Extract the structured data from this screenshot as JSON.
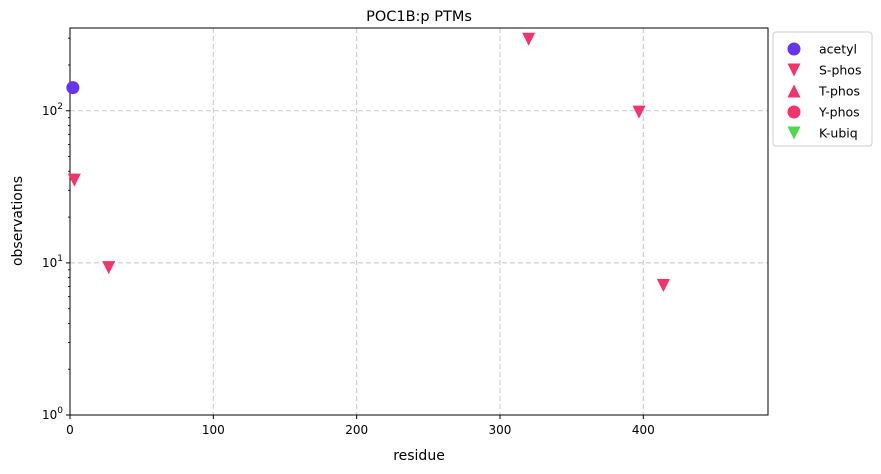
{
  "chart_data": {
    "type": "scatter",
    "title": "POC1B:p PTMs",
    "xlabel": "residue",
    "ylabel": "observations",
    "xlim": [
      0,
      487
    ],
    "ylim": [
      1,
      350
    ],
    "yscale": "log",
    "grid": true,
    "x_ticks": [
      "0",
      "100",
      "200",
      "300",
      "400"
    ],
    "x_tick_values": [
      0,
      100,
      200,
      300,
      400
    ],
    "y_ticks": [
      {
        "base": "10",
        "exp": "0",
        "value": 1
      },
      {
        "base": "10",
        "exp": "1",
        "value": 10
      },
      {
        "base": "10",
        "exp": "2",
        "value": 100
      }
    ],
    "legend_position": "outside-top-right",
    "series": [
      {
        "name": "acetyl",
        "marker": "circle",
        "color": "#6633ee",
        "points": [
          {
            "x": 2,
            "y": 142
          }
        ]
      },
      {
        "name": "S-phos",
        "marker": "triangle-down",
        "color": "#f5336b",
        "points": [
          {
            "x": 3,
            "y": 35
          },
          {
            "x": 27,
            "y": 9.3
          },
          {
            "x": 320,
            "y": 295
          },
          {
            "x": 397,
            "y": 98
          },
          {
            "x": 414,
            "y": 7.1
          }
        ]
      },
      {
        "name": "T-phos",
        "marker": "triangle-up",
        "color": "#f5336b",
        "points": []
      },
      {
        "name": "Y-phos",
        "marker": "circle",
        "color": "#f5336b",
        "points": []
      },
      {
        "name": "K-ubiq",
        "marker": "triangle-down",
        "color": "#4fd94a",
        "points": []
      }
    ]
  }
}
